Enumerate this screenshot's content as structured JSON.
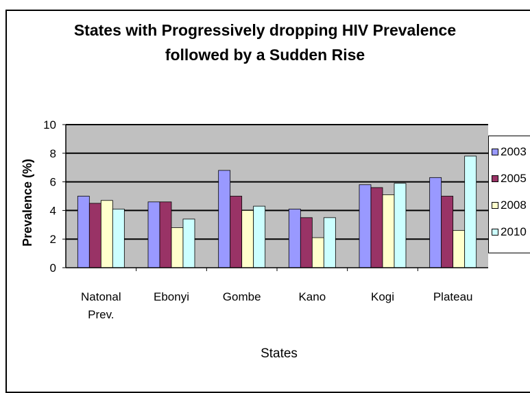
{
  "chart_data": {
    "type": "bar",
    "title_lines": [
      "States with Progressively dropping HIV Prevalence",
      "followed by a Sudden Rise"
    ],
    "xlabel": "States",
    "ylabel": "Prevalence (%)",
    "ylim": [
      0,
      10
    ],
    "yticks": [
      "0",
      "2",
      "4",
      "6",
      "8",
      "10"
    ],
    "grid": true,
    "legend_position": "right",
    "categories": [
      [
        "Natonal",
        "Prev."
      ],
      [
        "Ebonyi"
      ],
      [
        "Gombe"
      ],
      [
        "Kano"
      ],
      [
        "Kogi"
      ],
      [
        "Plateau"
      ]
    ],
    "series": [
      {
        "name": "2003",
        "color": "#9999ff",
        "values": [
          5.0,
          4.6,
          6.8,
          4.1,
          5.8,
          6.3
        ]
      },
      {
        "name": "2005",
        "color": "#993366",
        "values": [
          4.5,
          4.6,
          5.0,
          3.5,
          5.6,
          5.0
        ]
      },
      {
        "name": "2008",
        "color": "#ffffcc",
        "values": [
          4.7,
          2.8,
          4.0,
          2.1,
          5.1,
          2.6
        ]
      },
      {
        "name": "2010",
        "color": "#ccffff",
        "values": [
          4.1,
          3.4,
          4.3,
          3.5,
          5.9,
          7.8
        ]
      }
    ],
    "plot_background": "#c0c0c0"
  }
}
